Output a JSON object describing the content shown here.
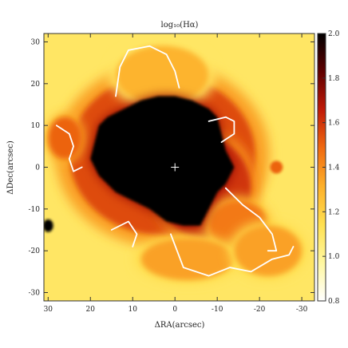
{
  "chart_data": {
    "type": "heatmap",
    "title": "log₁₀(Hα)",
    "xlabel": "ΔRA(arcsec)",
    "ylabel": "ΔDec(arcsec)",
    "xlim": [
      31,
      -33
    ],
    "ylim": [
      -32,
      32
    ],
    "x_ticks": [
      30,
      20,
      10,
      0,
      -10,
      -20,
      -30
    ],
    "x_tick_labels": [
      "30",
      "20",
      "10",
      "0",
      "-10",
      "-20",
      "-30"
    ],
    "y_ticks": [
      30,
      20,
      10,
      0,
      -10,
      -20,
      -30
    ],
    "y_tick_labels": [
      "30",
      "20",
      "10",
      "0",
      "-10",
      "-20",
      "-30"
    ],
    "colorbar": {
      "min": 0.8,
      "max": 2.0,
      "ticks": [
        2.0,
        1.8,
        1.6,
        1.4,
        1.2,
        1.0,
        0.8
      ],
      "tick_labels": [
        "2.0",
        "1.8",
        "1.6",
        "1.4",
        "1.2",
        "1.0",
        "0.8"
      ],
      "colors": [
        "#ffffff",
        "#fff7a0",
        "#ffe050",
        "#fdb02a",
        "#f06a10",
        "#c01a08",
        "#600000",
        "#000000"
      ]
    },
    "background_level": 1.1,
    "center_marker": {
      "x": 0,
      "y": 0,
      "symbol": "+"
    },
    "core_region": {
      "level": 2.0,
      "outline": [
        [
          12,
          14
        ],
        [
          8,
          16
        ],
        [
          4,
          17
        ],
        [
          0,
          17
        ],
        [
          -4,
          16
        ],
        [
          -8,
          14
        ],
        [
          -10,
          12
        ],
        [
          -11,
          8
        ],
        [
          -12,
          4
        ],
        [
          -14,
          0
        ],
        [
          -12,
          -4
        ],
        [
          -10,
          -6
        ],
        [
          -8,
          -10
        ],
        [
          -6,
          -14
        ],
        [
          -2,
          -14
        ],
        [
          2,
          -13
        ],
        [
          6,
          -10
        ],
        [
          10,
          -8
        ],
        [
          14,
          -6
        ],
        [
          18,
          -2
        ],
        [
          20,
          2
        ],
        [
          19,
          6
        ],
        [
          18,
          10
        ],
        [
          16,
          12
        ]
      ]
    },
    "emission_blobs": [
      {
        "x": 3,
        "y": 3,
        "rx": 22,
        "ry": 19,
        "level": 1.55
      },
      {
        "x": -7,
        "y": -5,
        "rx": 11,
        "ry": 12,
        "level": 1.6
      },
      {
        "x": -15,
        "y": -14,
        "rx": 7,
        "ry": 6,
        "level": 1.45
      },
      {
        "x": -3,
        "y": -22,
        "rx": 11,
        "ry": 5,
        "level": 1.35
      },
      {
        "x": -22,
        "y": -20,
        "rx": 8,
        "ry": 6,
        "level": 1.35
      },
      {
        "x": 3,
        "y": 22,
        "rx": 11,
        "ry": 7,
        "level": 1.3
      },
      {
        "x": 26,
        "y": 7,
        "rx": 4,
        "ry": 5,
        "level": 1.5
      },
      {
        "x": -24,
        "y": 0,
        "rx": 1.5,
        "ry": 1.5,
        "level": 1.5
      },
      {
        "x": 30,
        "y": -14,
        "rx": 1.2,
        "ry": 1.5,
        "level": 2.0
      }
    ],
    "white_arcs": [
      [
        [
          14,
          17
        ],
        [
          13,
          24
        ],
        [
          11,
          28
        ],
        [
          6,
          29
        ],
        [
          2,
          27
        ],
        [
          0,
          23
        ],
        [
          -1,
          19
        ]
      ],
      [
        [
          -8,
          11
        ],
        [
          -12,
          12
        ],
        [
          -14,
          11
        ],
        [
          -14,
          8
        ],
        [
          -11,
          6
        ]
      ],
      [
        [
          28,
          10
        ],
        [
          25,
          8
        ],
        [
          24,
          5
        ],
        [
          25,
          2
        ],
        [
          24,
          -1
        ],
        [
          22,
          0
        ]
      ],
      [
        [
          15,
          -15
        ],
        [
          11,
          -13
        ],
        [
          9,
          -16
        ],
        [
          10,
          -19
        ]
      ],
      [
        [
          -12,
          -5
        ],
        [
          -16,
          -9
        ],
        [
          -20,
          -12
        ],
        [
          -23,
          -16
        ],
        [
          -24,
          -20
        ],
        [
          -22,
          -20
        ]
      ],
      [
        [
          1,
          -16
        ],
        [
          -2,
          -24
        ],
        [
          -8,
          -26
        ],
        [
          -13,
          -24
        ],
        [
          -18,
          -25
        ],
        [
          -23,
          -22
        ],
        [
          -27,
          -21
        ],
        [
          -28,
          -19
        ]
      ]
    ]
  }
}
